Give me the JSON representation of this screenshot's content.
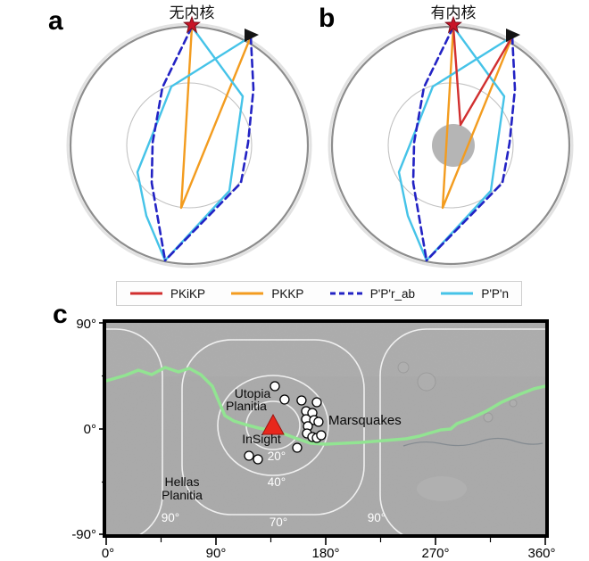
{
  "figure_labels": {
    "a": "a",
    "b": "b",
    "c": "c"
  },
  "panel_a": {
    "title": "无内核"
  },
  "panel_b": {
    "title": "有内核"
  },
  "legend": {
    "items": [
      {
        "label": "PKiKP",
        "color": "#d12f2f",
        "style": "solid"
      },
      {
        "label": "PKKP",
        "color": "#f39c1f",
        "style": "solid"
      },
      {
        "label": "P'P'r_ab",
        "color": "#2323c4",
        "style": "dashed"
      },
      {
        "label": "P'P'n",
        "color": "#45c3e8",
        "style": "solid"
      }
    ]
  },
  "map": {
    "x_ticks": [
      "0°",
      "90°",
      "180°",
      "270°",
      "360°"
    ],
    "y_ticks": [
      "90°",
      "0°",
      "-90°"
    ],
    "labels": {
      "utopia_line1": "Utopia",
      "utopia_line2": "Planitia",
      "hellas_line1": "Hellas",
      "hellas_line2": "Planitia",
      "insight": "InSight",
      "marsquakes": "Marsquakes"
    },
    "distance_rings": {
      "d20": "20°",
      "d40": "40°",
      "d70": "70°",
      "d90_left": "90°",
      "d90_right": "90°"
    },
    "insight_site": {
      "lon_deg": 136.8,
      "lat_deg": 4.9
    },
    "marsquakes": [
      {
        "lon_deg": 138.3,
        "lat_deg": 36.1
      },
      {
        "lon_deg": 146.3,
        "lat_deg": 24.7
      },
      {
        "lon_deg": 160.2,
        "lat_deg": 23.9
      },
      {
        "lon_deg": 172.7,
        "lat_deg": 22.4
      },
      {
        "lon_deg": 163.9,
        "lat_deg": 14.8
      },
      {
        "lon_deg": 169.0,
        "lat_deg": 13.3
      },
      {
        "lon_deg": 163.9,
        "lat_deg": 8.0
      },
      {
        "lon_deg": 170.5,
        "lat_deg": 7.2
      },
      {
        "lon_deg": 165.4,
        "lat_deg": 2.0
      },
      {
        "lon_deg": 174.1,
        "lat_deg": 5.7
      },
      {
        "lon_deg": 164.6,
        "lat_deg": -4.2
      },
      {
        "lon_deg": 169.0,
        "lat_deg": -7.2
      },
      {
        "lon_deg": 172.7,
        "lat_deg": -8.0
      },
      {
        "lon_deg": 176.3,
        "lat_deg": -5.7
      },
      {
        "lon_deg": 156.6,
        "lat_deg": -16.3
      },
      {
        "lon_deg": 117.1,
        "lat_deg": -23.2
      },
      {
        "lon_deg": 124.4,
        "lat_deg": -26.2
      }
    ],
    "colors": {
      "surface": "#a9a9a9",
      "dichotomy_boundary": "#92e492",
      "distance_contours": "#f5f5f5",
      "insight_marker": "#e8271c",
      "marsquake_fill": "#ffffff"
    }
  }
}
